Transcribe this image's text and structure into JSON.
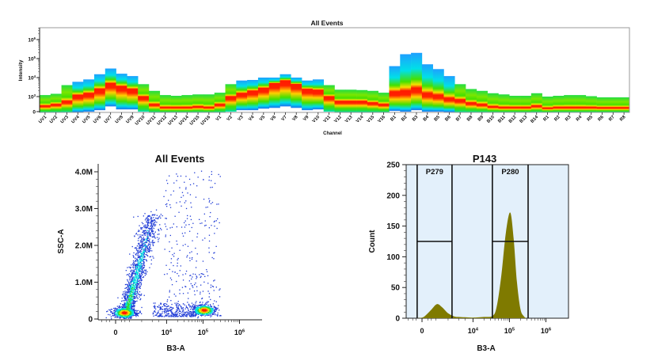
{
  "colors": {
    "density_low": "#1f3bd6",
    "density_mid": "#00e0e0",
    "density_high": "#ff1a00",
    "histogram_fill": "#7f7a00",
    "gate_background": "#e3f0fb",
    "gate_line": "#111111"
  },
  "chart_data": [
    {
      "type": "heatmap",
      "title": "All Events",
      "xlabel": "Channel",
      "ylabel": "Intensity",
      "y_scale": "biexponential",
      "y_ticks": [
        {
          "base": "0",
          "exp": ""
        },
        {
          "base": "10",
          "exp": "3"
        },
        {
          "base": "10",
          "exp": "4"
        },
        {
          "base": "10",
          "exp": "5"
        },
        {
          "base": "10",
          "exp": "6"
        }
      ],
      "channels": [
        "UV1",
        "UV2",
        "UV3",
        "UV4",
        "UV5",
        "UV6",
        "UV7",
        "UV8",
        "UV9",
        "UV10",
        "UV11",
        "UV12",
        "UV13",
        "UV14",
        "UV15",
        "UV16",
        "V1",
        "V2",
        "V3",
        "V4",
        "V5",
        "V6",
        "V7",
        "V8",
        "V9",
        "V10",
        "V11",
        "V12",
        "V13",
        "V14",
        "V15",
        "V16",
        "B1",
        "B2",
        "B3",
        "B4",
        "B5",
        "B6",
        "B7",
        "B8",
        "B9",
        "B10",
        "B11",
        "B12",
        "B13",
        "B14",
        "R1",
        "R2",
        "R3",
        "R4",
        "R5",
        "R6",
        "R7",
        "R8"
      ],
      "max_intensity": [
        1200,
        1400,
        4000,
        6000,
        8000,
        15000,
        30000,
        16000,
        12000,
        4500,
        2000,
        1200,
        1100,
        1200,
        1300,
        1300,
        1600,
        4500,
        7000,
        7500,
        10000,
        10000,
        15000,
        10000,
        7000,
        8000,
        4000,
        2300,
        2300,
        2200,
        2000,
        1600,
        40000,
        170000,
        200000,
        50000,
        28000,
        12000,
        4500,
        2500,
        2000,
        1500,
        1300,
        1100,
        1100,
        1500,
        1000,
        1100,
        1200,
        1200,
        1050,
        950,
        950,
        950
      ],
      "mode_intensity": [
        400,
        500,
        700,
        1200,
        1500,
        2500,
        5000,
        3500,
        2500,
        1000,
        500,
        300,
        300,
        300,
        350,
        300,
        500,
        1000,
        1500,
        2000,
        2800,
        5000,
        7000,
        4500,
        2500,
        2200,
        1000,
        700,
        700,
        700,
        600,
        500,
        1800,
        2000,
        2800,
        1500,
        1200,
        900,
        800,
        600,
        500,
        350,
        300,
        300,
        300,
        400,
        250,
        300,
        300,
        300,
        300,
        280,
        280,
        280
      ],
      "min_intensity": [
        0,
        0,
        0,
        0,
        50,
        150,
        400,
        200,
        200,
        50,
        0,
        0,
        0,
        0,
        0,
        0,
        0,
        50,
        150,
        150,
        250,
        300,
        400,
        300,
        150,
        200,
        50,
        0,
        0,
        0,
        0,
        0,
        100,
        50,
        150,
        50,
        50,
        30,
        0,
        0,
        0,
        0,
        0,
        0,
        0,
        0,
        0,
        0,
        0,
        0,
        0,
        0,
        0,
        0
      ]
    },
    {
      "type": "scatter",
      "title": "All Events",
      "xlabel": "B3-A",
      "ylabel": "SSC-A",
      "x_scale": "biexponential",
      "x_ticks": [
        {
          "base": "0",
          "exp": "",
          "value": 0
        },
        {
          "base": "10",
          "exp": "4",
          "value": 10000
        },
        {
          "base": "10",
          "exp": "5",
          "value": 100000
        },
        {
          "base": "10",
          "exp": "6",
          "value": 1000000
        }
      ],
      "y_ticks": [
        {
          "label": "0",
          "value": 0
        },
        {
          "label": "1.0M",
          "value": 1000000
        },
        {
          "label": "2.0M",
          "value": 2000000
        },
        {
          "label": "3.0M",
          "value": 3000000
        },
        {
          "label": "4.0M",
          "value": 4000000
        }
      ],
      "ylim": [
        0,
        4200000
      ],
      "populations": [
        {
          "kind": "cluster",
          "b3a": 450,
          "ssca": 180000,
          "events": 700
        },
        {
          "kind": "cluster",
          "b3a": 105000,
          "ssca": 250000,
          "events": 550
        },
        {
          "kind": "streak",
          "b3a_from": 600,
          "ssca_from": 250000,
          "b3a_to": 4000,
          "ssca_to": 2800000,
          "events": 1300
        },
        {
          "kind": "sparse",
          "b3a_range": [
            8000,
            300000
          ],
          "ssca_range": [
            100000,
            4100000
          ],
          "events": 320
        },
        {
          "kind": "sparse",
          "b3a_range": [
            4000,
            60000
          ],
          "ssca_range": [
            80000,
            450000
          ],
          "events": 260
        }
      ]
    },
    {
      "type": "area",
      "title": "P143",
      "xlabel": "B3-A",
      "ylabel": "Count",
      "x_scale": "biexponential",
      "x_ticks": [
        {
          "base": "0",
          "exp": "",
          "value": 0
        },
        {
          "base": "10",
          "exp": "4",
          "value": 10000
        },
        {
          "base": "10",
          "exp": "5",
          "value": 100000
        },
        {
          "base": "10",
          "exp": "6",
          "value": 1000000
        }
      ],
      "y_ticks": [
        0,
        50,
        100,
        150,
        200,
        250
      ],
      "ylim": [
        0,
        250
      ],
      "x": [
        -400,
        0,
        200,
        500,
        870,
        1300,
        2000,
        3000,
        4000,
        6000,
        10000,
        20000,
        35000,
        45000,
        60000,
        80000,
        105000,
        130000,
        160000,
        200000,
        250000,
        300000
      ],
      "y": [
        0,
        1,
        5,
        14,
        23,
        18,
        8,
        3,
        2,
        1.5,
        1,
        2,
        4,
        20,
        70,
        140,
        172,
        130,
        60,
        15,
        3,
        0
      ],
      "gates": [
        {
          "name": "P279",
          "from": -250,
          "to": 2600,
          "level": 125
        },
        {
          "name": "P280",
          "from": 34000,
          "to": 325000,
          "level": 125
        }
      ]
    }
  ]
}
